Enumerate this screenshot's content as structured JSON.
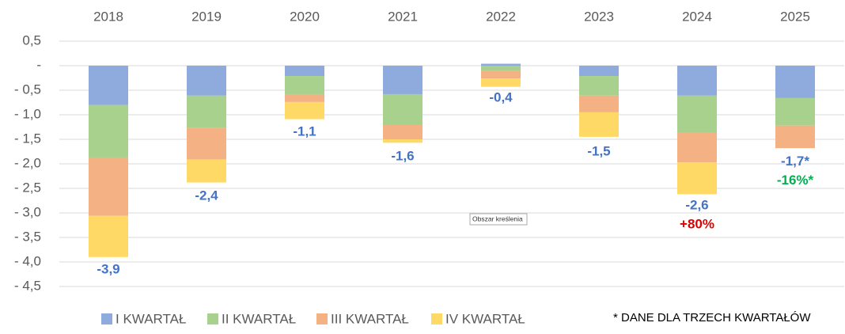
{
  "chart_data": {
    "type": "bar",
    "stacked": true,
    "categories": [
      "2018",
      "2019",
      "2020",
      "2021",
      "2022",
      "2023",
      "2024",
      "2025"
    ],
    "series": [
      {
        "name": "I KWARTAŁ",
        "color": "#8faadc",
        "values": [
          -0.8,
          -0.61,
          -0.21,
          -0.58,
          0.04,
          -0.21,
          -0.61,
          -0.66
        ]
      },
      {
        "name": "II KWARTAŁ",
        "color": "#a9d18e",
        "values": [
          -1.07,
          -0.65,
          -0.37,
          -0.63,
          -0.11,
          -0.4,
          -0.76,
          -0.56
        ]
      },
      {
        "name": "III KWARTAŁ",
        "color": "#f4b183",
        "values": [
          -1.19,
          -0.65,
          -0.16,
          -0.29,
          -0.15,
          -0.34,
          -0.6,
          -0.46
        ]
      },
      {
        "name": "IV KWARTAŁ",
        "color": "#ffd966",
        "values": [
          -0.84,
          -0.47,
          -0.35,
          -0.07,
          -0.17,
          -0.5,
          -0.65,
          null
        ]
      }
    ],
    "totals": {
      "values": [
        -3.9,
        -2.4,
        -1.1,
        -1.6,
        -0.4,
        -1.5,
        -2.6,
        -1.7
      ],
      "value_labels": [
        "-3,9",
        "-2,4",
        "-1,1",
        "-1,6",
        "-0,4",
        "-1,5",
        "-2,6",
        "-1,7*"
      ],
      "color": "#4472c4",
      "change_labels": [
        null,
        null,
        null,
        null,
        null,
        null,
        "+80%",
        "-16%*"
      ],
      "change_colors": [
        null,
        null,
        null,
        null,
        null,
        null,
        "#e00000",
        "#00b050"
      ]
    },
    "ylim": [
      -4.5,
      0.5
    ],
    "yticks": [
      {
        "value": 0.5,
        "label": "0,5"
      },
      {
        "value": 0,
        "label": "-"
      },
      {
        "value": -0.5,
        "label": "- 0,5"
      },
      {
        "value": -1,
        "label": "- 1,0"
      },
      {
        "value": -1.5,
        "label": "- 1,5"
      },
      {
        "value": -2,
        "label": "- 2,0"
      },
      {
        "value": -2.5,
        "label": "- 2,5"
      },
      {
        "value": -3,
        "label": "- 3,0"
      },
      {
        "value": -3.5,
        "label": "- 3,5"
      },
      {
        "value": -4,
        "label": "- 4,0"
      },
      {
        "value": -4.5,
        "label": "- 4,5"
      }
    ],
    "grid": true,
    "legend": "bottom",
    "footnote": "* DANE DLA TRZECH KWARTAŁÓW",
    "tooltip": "Obszar kreślenia"
  }
}
